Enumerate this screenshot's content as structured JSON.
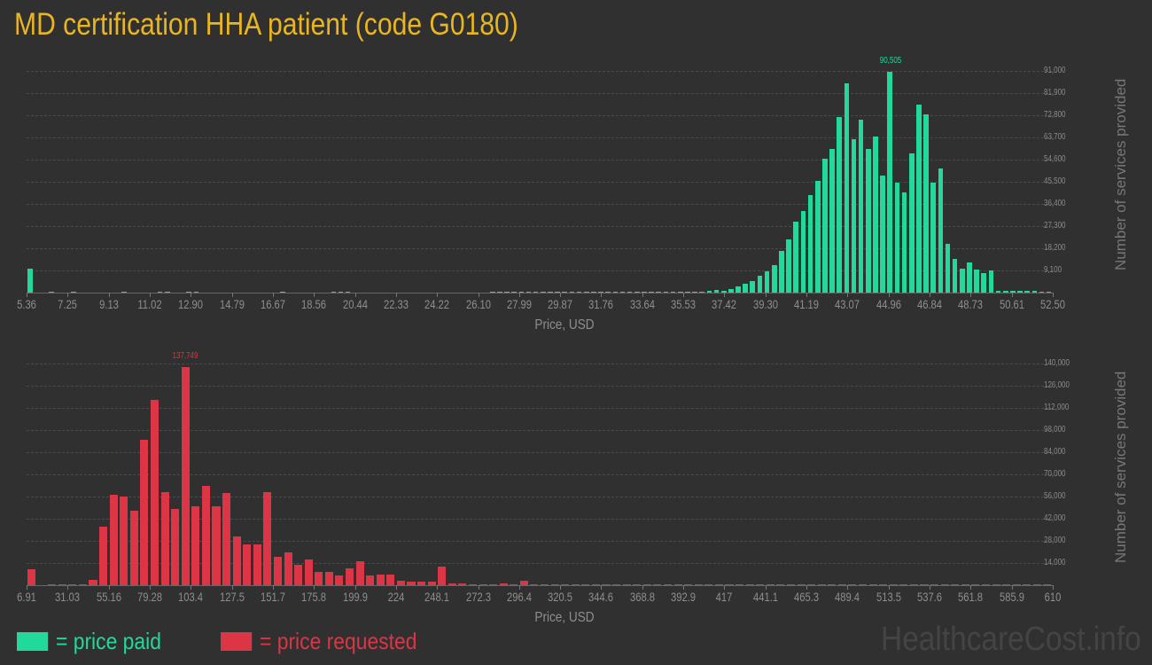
{
  "title": "MD certification HHA patient (code G0180)",
  "colors": {
    "paid": "#20d99a",
    "requested": "#dc3545",
    "title": "#e8b622",
    "background": "#303030"
  },
  "legend": [
    {
      "label": "= price paid",
      "color": "#20d99a"
    },
    {
      "label": "= price requested",
      "color": "#dc3545"
    }
  ],
  "watermark": "HealthcareCost.info",
  "chart_data": [
    {
      "type": "bar",
      "title": "Price paid",
      "xlabel": "Price, USD",
      "ylabel": "Number of services provided",
      "ylim": [
        0,
        91000
      ],
      "yticks": [
        "9,100",
        "18,200",
        "27,300",
        "36,400",
        "45,500",
        "54,600",
        "63,700",
        "72,800",
        "81,900",
        "91,000"
      ],
      "xticks": [
        "5.36",
        "7.25",
        "9.13",
        "11.02",
        "12.90",
        "14.79",
        "16.67",
        "18.56",
        "20.44",
        "22.33",
        "24.22",
        "26.10",
        "27.99",
        "29.87",
        "31.76",
        "33.64",
        "35.53",
        "37.42",
        "39.30",
        "41.19",
        "43.07",
        "44.96",
        "46.84",
        "48.73",
        "50.61",
        "52.50"
      ],
      "peak_label": "90,505",
      "grid": true,
      "values": [
        10000,
        0,
        0,
        300,
        0,
        0,
        300,
        0,
        0,
        0,
        0,
        0,
        0,
        300,
        0,
        0,
        0,
        0,
        300,
        300,
        0,
        0,
        300,
        300,
        0,
        0,
        0,
        0,
        0,
        0,
        0,
        0,
        0,
        0,
        0,
        300,
        0,
        0,
        0,
        0,
        0,
        0,
        300,
        300,
        300,
        0,
        0,
        0,
        0,
        0,
        0,
        0,
        0,
        0,
        0,
        0,
        0,
        0,
        0,
        0,
        0,
        0,
        0,
        0,
        300,
        300,
        300,
        300,
        300,
        300,
        300,
        300,
        300,
        300,
        300,
        300,
        300,
        300,
        300,
        300,
        300,
        300,
        300,
        300,
        300,
        300,
        300,
        300,
        300,
        300,
        300,
        300,
        300,
        300,
        700,
        1200,
        800,
        1600,
        2400,
        3500,
        4800,
        6800,
        8900,
        11200,
        17000,
        22000,
        29000,
        33500,
        40000,
        46000,
        55000,
        59000,
        72000,
        86000,
        63000,
        71000,
        59000,
        64000,
        48000,
        90505,
        45000,
        41000,
        57000,
        77000,
        73000,
        45000,
        51000,
        20000,
        14000,
        10000,
        12500,
        9500,
        8000,
        9000,
        700,
        700,
        700,
        900,
        700,
        900,
        500,
        400
      ],
      "note": "values in ascending price order; bars past 31.76 dense"
    },
    {
      "type": "bar",
      "title": "Price requested",
      "xlabel": "Price, USD",
      "ylabel": "Number of services provided",
      "ylim": [
        0,
        140000
      ],
      "yticks": [
        "14,000",
        "28,000",
        "42,000",
        "56,000",
        "70,000",
        "84,000",
        "98,000",
        "112,000",
        "126,000",
        "140,000"
      ],
      "xticks": [
        "6.91",
        "31.03",
        "55.16",
        "79.28",
        "103.4",
        "127.5",
        "151.7",
        "175.8",
        "199.9",
        "224",
        "248.1",
        "272.3",
        "296.4",
        "320.5",
        "344.6",
        "368.8",
        "392.9",
        "417",
        "441.1",
        "465.3",
        "489.4",
        "513.5",
        "537.6",
        "561.8",
        "585.9",
        "610"
      ],
      "peak_label": "137,749",
      "grid": true,
      "values": [
        10000,
        0,
        700,
        700,
        700,
        700,
        3500,
        37000,
        57000,
        56000,
        47000,
        92000,
        117000,
        59000,
        48000,
        137749,
        50000,
        63000,
        50000,
        58000,
        31000,
        26000,
        25500,
        59000,
        18000,
        20500,
        13000,
        16000,
        8500,
        8500,
        6000,
        10700,
        15000,
        6200,
        7000,
        6800,
        2700,
        2000,
        2500,
        2000,
        12000,
        1000,
        1000,
        500,
        800,
        500,
        1200,
        800,
        3000,
        500,
        500,
        500,
        500,
        500,
        500,
        500,
        500,
        500,
        500,
        500,
        500,
        500,
        500,
        500,
        500,
        500,
        500,
        500,
        500,
        500,
        500,
        500,
        500,
        500,
        500,
        500,
        500,
        500,
        500,
        500,
        500,
        500,
        500,
        500,
        500,
        500,
        500,
        500,
        500,
        500,
        500,
        500,
        500,
        500,
        500,
        500,
        500,
        500,
        500,
        500
      ],
      "note": "values in ascending price order"
    }
  ]
}
